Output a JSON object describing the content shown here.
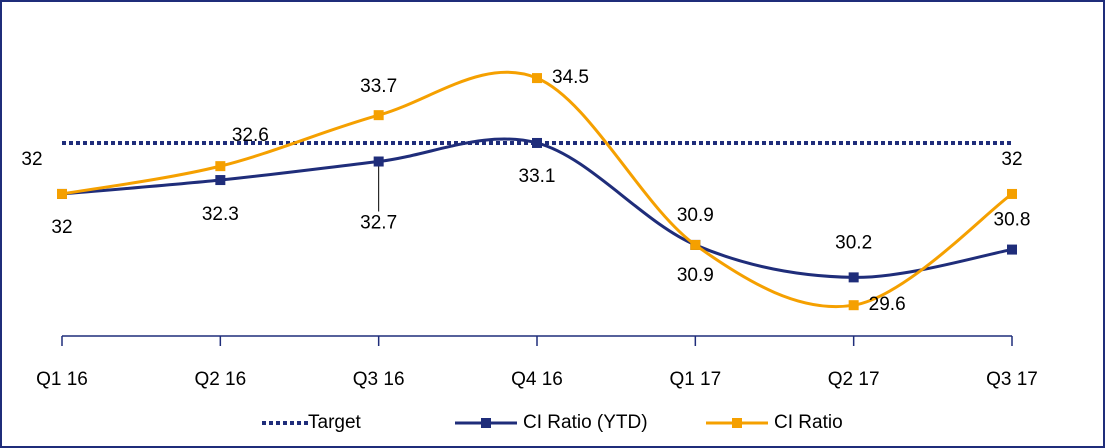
{
  "chart_data": {
    "type": "line",
    "categories": [
      "Q1 16",
      "Q2 16",
      "Q3 16",
      "Q4 16",
      "Q1 17",
      "Q2 17",
      "Q3 17"
    ],
    "series": [
      {
        "name": "Target",
        "color": "#1f2d7a",
        "values": [
          33.1,
          33.1,
          33.1,
          33.1,
          33.1,
          33.1,
          33.1
        ]
      },
      {
        "name": "CI Ratio (YTD)",
        "color": "#1f2d7a",
        "values": [
          32.0,
          32.3,
          32.7,
          33.1,
          30.9,
          30.2,
          30.8
        ]
      },
      {
        "name": "CI Ratio",
        "color": "#f5a000",
        "values": [
          32.0,
          32.6,
          33.7,
          34.5,
          30.9,
          29.6,
          32.0
        ]
      }
    ],
    "ylim": [
      29,
      35.3
    ]
  }
}
